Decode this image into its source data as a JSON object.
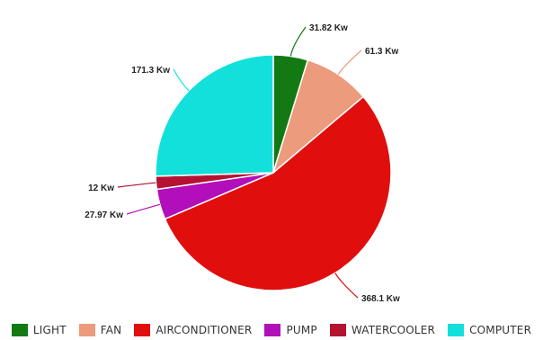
{
  "chart_data": {
    "type": "pie",
    "title": "",
    "categories": [
      "LIGHT",
      "FAN",
      "AIRCONDITIONER",
      "PUMP",
      "WATERCOOLER",
      "COMPUTER"
    ],
    "values": [
      31.82,
      61.3,
      368.1,
      27.97,
      12,
      171.3
    ],
    "value_labels": [
      "31.82 Kw",
      "61.3 Kw",
      "368.1 Kw",
      "27.97 Kw",
      "12 Kw",
      "171.3 Kw"
    ],
    "colors": [
      "#137a13",
      "#ec9b7c",
      "#e10e0e",
      "#b20eb9",
      "#b51232",
      "#13e0da"
    ],
    "start": "top",
    "direction": "clockwise",
    "legend_position": "bottom"
  }
}
